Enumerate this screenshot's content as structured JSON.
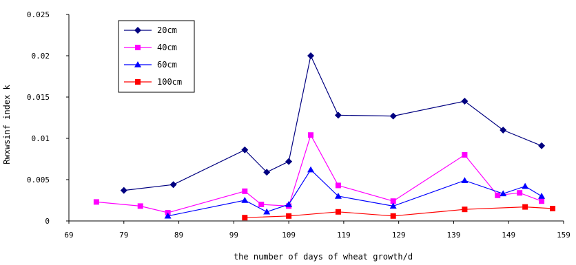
{
  "chart_data": {
    "type": "line",
    "xlabel": "the number of days of wheat growth/d",
    "ylabel": "Rwxwsinf index k",
    "xlim": [
      69,
      159
    ],
    "ylim": [
      0,
      0.025
    ],
    "x_ticks": [
      "69",
      "79",
      "89",
      "99",
      "109",
      "119",
      "129",
      "139",
      "149",
      "159"
    ],
    "y_ticks": [
      "0",
      "0.005",
      "0.01",
      "0.015",
      "0.02",
      "0.025"
    ],
    "legend_position": "top-left",
    "grid": false,
    "series": [
      {
        "name": "20cm",
        "color": "#000080",
        "marker": "diamond",
        "points": [
          [
            79,
            0.0037
          ],
          [
            88,
            0.0044
          ],
          [
            101,
            0.0086
          ],
          [
            105,
            0.0059
          ],
          [
            109,
            0.0072
          ],
          [
            113,
            0.02
          ],
          [
            118,
            0.0128
          ],
          [
            128,
            0.0127
          ],
          [
            141,
            0.0145
          ],
          [
            148,
            0.011
          ],
          [
            155,
            0.0091
          ]
        ]
      },
      {
        "name": "40cm",
        "color": "#FF00FF",
        "marker": "square",
        "points": [
          [
            74,
            0.0023
          ],
          [
            82,
            0.0018
          ],
          [
            87,
            0.001
          ],
          [
            101,
            0.0036
          ],
          [
            104,
            0.002
          ],
          [
            109,
            0.0018
          ],
          [
            113,
            0.0104
          ],
          [
            118,
            0.0043
          ],
          [
            128,
            0.0024
          ],
          [
            141,
            0.008
          ],
          [
            147,
            0.0031
          ],
          [
            151,
            0.0034
          ],
          [
            155,
            0.0024
          ]
        ]
      },
      {
        "name": "60cm",
        "color": "#0000FF",
        "marker": "triangle",
        "points": [
          [
            87,
            0.0006
          ],
          [
            101,
            0.0025
          ],
          [
            105,
            0.0011
          ],
          [
            109,
            0.002
          ],
          [
            113,
            0.0062
          ],
          [
            118,
            0.003
          ],
          [
            128,
            0.0018
          ],
          [
            141,
            0.0049
          ],
          [
            148,
            0.0033
          ],
          [
            152,
            0.0042
          ],
          [
            155,
            0.003
          ]
        ]
      },
      {
        "name": "100cm",
        "color": "#FF0000",
        "marker": "square",
        "points": [
          [
            101,
            0.0004
          ],
          [
            109,
            0.0006
          ],
          [
            118,
            0.0011
          ],
          [
            128,
            0.0006
          ],
          [
            141,
            0.0014
          ],
          [
            152,
            0.0017
          ],
          [
            157,
            0.0015
          ]
        ]
      }
    ]
  }
}
